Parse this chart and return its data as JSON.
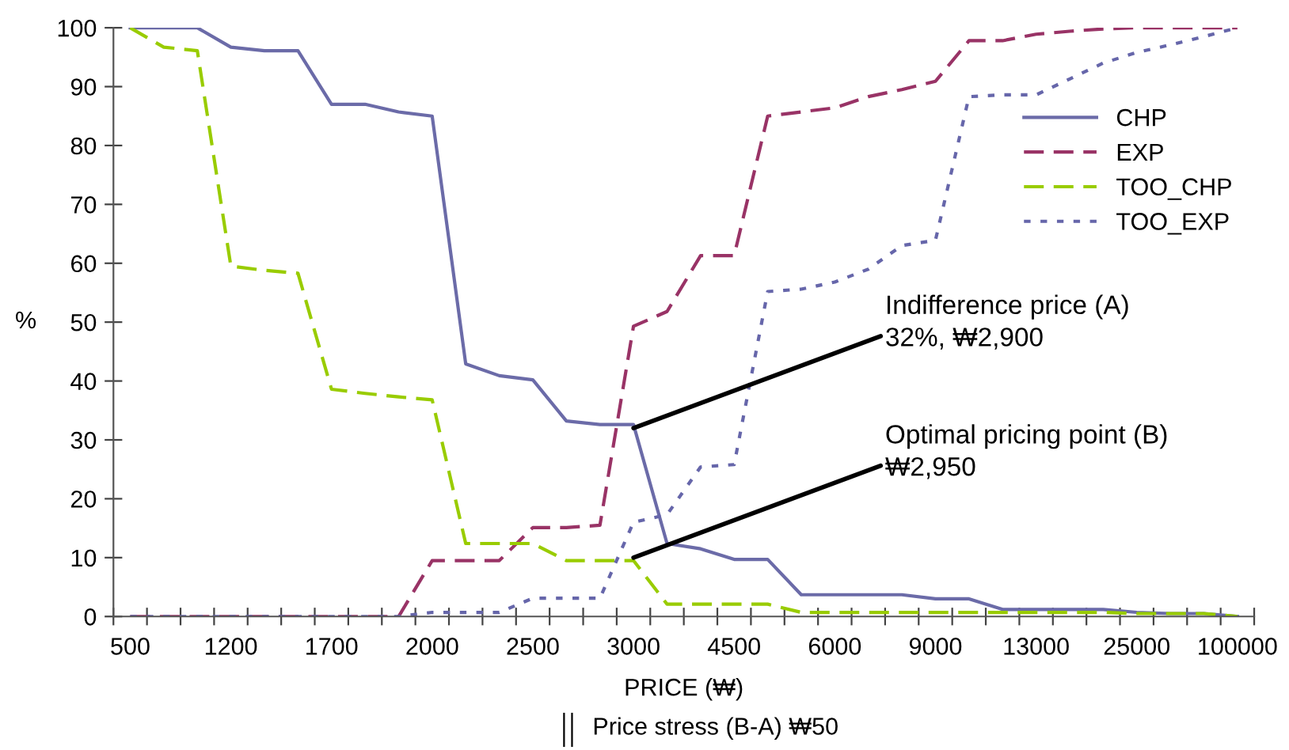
{
  "chart_data": {
    "type": "line",
    "categories": [
      "500",
      null,
      null,
      "1200",
      null,
      null,
      "1700",
      null,
      null,
      "2000",
      null,
      null,
      "2500",
      null,
      null,
      "3000",
      null,
      null,
      "4500",
      null,
      null,
      "6000",
      null,
      null,
      "9000",
      null,
      null,
      "13000",
      null,
      null,
      "25000",
      null,
      null,
      "100000"
    ],
    "series": [
      {
        "name": "CHP",
        "color": "#6b6ba8",
        "line_style": "solid",
        "values": [
          100,
          100,
          100,
          96.7,
          96.1,
          96.1,
          87,
          87,
          85.7,
          85,
          42.9,
          40.9,
          40.2,
          33.2,
          32.6,
          32.6,
          12.4,
          11.5,
          9.7,
          9.7,
          3.7,
          3.7,
          3.7,
          3.7,
          3.0,
          3.0,
          1.2,
          1.2,
          1.2,
          1.2,
          0.7,
          0.5,
          0.5,
          0
        ]
      },
      {
        "name": "EXP",
        "color": "#993366",
        "line_style": "dashed",
        "values": [
          0,
          0,
          0,
          0,
          0,
          0,
          0,
          0,
          0,
          9.5,
          9.5,
          9.5,
          15.1,
          15.1,
          15.5,
          49.3,
          51.8,
          61.3,
          61.3,
          85,
          85.7,
          86.4,
          88.3,
          89.5,
          90.9,
          97.8,
          97.8,
          98.9,
          99.4,
          99.8,
          100,
          100,
          100,
          100
        ]
      },
      {
        "name": "TOO_CHP",
        "color": "#99cc00",
        "line_style": "dashed",
        "values": [
          100,
          96.7,
          96.1,
          59.5,
          58.8,
          58.3,
          38.6,
          37.9,
          37.3,
          36.8,
          12.4,
          12.4,
          12.4,
          9.5,
          9.5,
          9.5,
          2.1,
          2.1,
          2.1,
          2.1,
          0.7,
          0.7,
          0.7,
          0.7,
          0.7,
          0.7,
          0.7,
          0.7,
          0.7,
          0.7,
          0.5,
          0.5,
          0.5,
          0
        ]
      },
      {
        "name": "TOO_EXP",
        "color": "#6666aa",
        "line_style": "dotted",
        "values": [
          0,
          0,
          0,
          0,
          0,
          0,
          0,
          0,
          0,
          0.7,
          0.7,
          0.7,
          3.1,
          3.1,
          3.1,
          16,
          17.3,
          25.4,
          25.8,
          55.2,
          55.6,
          56.8,
          59,
          63,
          63.9,
          88.3,
          88.6,
          88.6,
          91.3,
          94,
          95.8,
          97.1,
          98.5,
          100
        ]
      }
    ],
    "xlabel": "PRICE (₩)",
    "ylabel": "%",
    "ylim": [
      0,
      100
    ],
    "yticks": [
      0,
      10,
      20,
      30,
      40,
      50,
      60,
      70,
      80,
      90,
      100
    ],
    "grid": false,
    "legend": "top right",
    "marker": "none",
    "annotations": [
      {
        "text": "Indifference price (A)\n32%, ₩2,900",
        "x": "3000",
        "y": 32
      },
      {
        "text": "Optimal pricing point (B)\n₩2,950",
        "x": "3000",
        "y": 10
      },
      "Price stress (B-A) ₩50"
    ]
  }
}
